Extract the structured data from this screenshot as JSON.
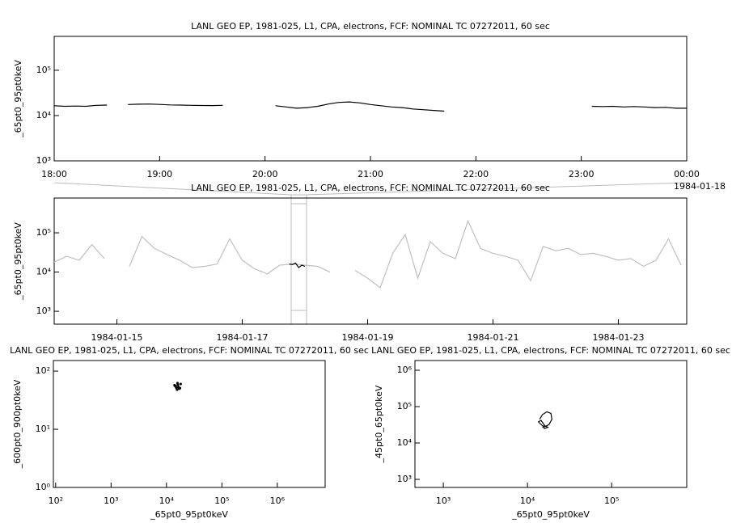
{
  "chart_data": [
    {
      "type": "line",
      "title": "LANL GEO EP, 1981-025, L1, CPA, electrons, FCF: NOMINAL TC 07272011, 60 sec",
      "ylabel": "_65pt0_95pt0keV",
      "date_label": "1984-01-18",
      "yscale": "log",
      "xlim": [
        18,
        24
      ],
      "ylim": [
        1000,
        560000
      ],
      "xticks": [
        {
          "value": 18,
          "label": "18:00"
        },
        {
          "value": 19,
          "label": "19:00"
        },
        {
          "value": 20,
          "label": "20:00"
        },
        {
          "value": 21,
          "label": "21:00"
        },
        {
          "value": 22,
          "label": "22:00"
        },
        {
          "value": 23,
          "label": "23:00"
        },
        {
          "value": 24,
          "label": "00:00"
        }
      ],
      "yticks": [
        {
          "value": 1000,
          "label": "10³"
        },
        {
          "value": 10000,
          "label": "10⁴"
        },
        {
          "value": 100000,
          "label": "10⁵"
        }
      ],
      "x": [
        18.0,
        18.1,
        18.2,
        18.3,
        18.4,
        18.5,
        18.6,
        18.7,
        18.8,
        18.9,
        19.0,
        19.1,
        19.2,
        19.3,
        19.4,
        19.5,
        19.6,
        19.7,
        19.8,
        19.9,
        20.0,
        20.1,
        20.2,
        20.3,
        20.4,
        20.5,
        20.6,
        20.7,
        20.8,
        20.9,
        21.0,
        21.1,
        21.2,
        21.3,
        21.4,
        21.5,
        21.6,
        21.7,
        21.8,
        21.9,
        22.0,
        22.1,
        22.2,
        22.3,
        22.4,
        22.5,
        22.6,
        22.7,
        22.8,
        22.9,
        23.0,
        23.1,
        23.2,
        23.3,
        23.4,
        23.5,
        23.6,
        23.7,
        23.8,
        23.9,
        24.0
      ],
      "series": [
        {
          "color": "#000000",
          "values": [
            16500,
            16000,
            16200,
            16000,
            16800,
            17000,
            null,
            17500,
            17800,
            18000,
            17600,
            17200,
            17000,
            16800,
            16700,
            16600,
            16800,
            null,
            null,
            null,
            null,
            16500,
            15500,
            14500,
            15000,
            16000,
            18000,
            19500,
            20000,
            19000,
            17500,
            16500,
            15500,
            15000,
            14000,
            13500,
            13000,
            12500,
            null,
            null,
            null,
            null,
            null,
            null,
            null,
            null,
            null,
            null,
            null,
            null,
            null,
            16000,
            15800,
            16000,
            15500,
            15800,
            15500,
            15000,
            15200,
            14500,
            14500
          ]
        }
      ]
    },
    {
      "type": "line",
      "title": "LANL GEO EP, 1981-025, L1, CPA, electrons, FCF: NOMINAL TC 07272011, 60 sec",
      "ylabel": "_65pt0_95pt0keV",
      "yscale": "log",
      "xlim": [
        14,
        24.09
      ],
      "ylim": [
        470,
        770000
      ],
      "xticks": [
        {
          "value": 15,
          "label": "1984-01-15"
        },
        {
          "value": 17,
          "label": "1984-01-17"
        },
        {
          "value": 19,
          "label": "1984-01-19"
        },
        {
          "value": 21,
          "label": "1984-01-21"
        },
        {
          "value": 23,
          "label": "1984-01-23"
        }
      ],
      "yticks": [
        {
          "value": 1000,
          "label": "10³"
        },
        {
          "value": 10000,
          "label": "10⁴"
        },
        {
          "value": 100000,
          "label": "10⁵"
        }
      ],
      "x": [
        14.0,
        14.2,
        14.4,
        14.6,
        14.8,
        15.0,
        15.2,
        15.4,
        15.6,
        15.8,
        16.0,
        16.2,
        16.4,
        16.6,
        16.8,
        17.0,
        17.2,
        17.4,
        17.6,
        17.8,
        18.0,
        18.2,
        18.4,
        18.6,
        18.8,
        19.0,
        19.2,
        19.4,
        19.6,
        19.8,
        20.0,
        20.2,
        20.4,
        20.6,
        20.8,
        21.0,
        21.2,
        21.4,
        21.6,
        21.8,
        22.0,
        22.2,
        22.4,
        22.6,
        22.8,
        23.0,
        23.2,
        23.4,
        23.6,
        23.8,
        24.0
      ],
      "series": [
        {
          "color": "#c0c0c0",
          "values": [
            18000,
            25000,
            20000,
            50000,
            22000,
            null,
            14000,
            80000,
            40000,
            28000,
            20000,
            13000,
            14000,
            16000,
            70000,
            20000,
            12000,
            9000,
            15000,
            16000,
            15000,
            14000,
            10000,
            null,
            11000,
            7000,
            4000,
            30000,
            90000,
            7000,
            60000,
            30000,
            22000,
            200000,
            40000,
            30000,
            25000,
            20000,
            6000,
            45000,
            35000,
            40000,
            28000,
            30000,
            25000,
            20000,
            22000,
            14000,
            20000,
            70000,
            15000
          ]
        },
        {
          "color": "#000000",
          "x": [
            17.75,
            17.8,
            17.85,
            17.9,
            17.95,
            18.0
          ],
          "values": [
            16000,
            15500,
            17000,
            13000,
            15000,
            14000
          ]
        }
      ]
    },
    {
      "type": "scatter",
      "title": "LANL GEO EP, 1981-025, L1, CPA, electrons, FCF: NOMINAL TC 07272011, 60 sec",
      "xlabel": "_65pt0_95pt0keV",
      "ylabel": "_600pt0_900pt0keV",
      "xscale": "log",
      "yscale": "log",
      "xlim": [
        91,
        7300000
      ],
      "ylim": [
        1,
        152
      ],
      "xticks": [
        {
          "value": 100,
          "label": "10²"
        },
        {
          "value": 1000,
          "label": "10³"
        },
        {
          "value": 10000,
          "label": "10⁴"
        },
        {
          "value": 100000,
          "label": "10⁵"
        },
        {
          "value": 1000000,
          "label": "10⁶"
        }
      ],
      "yticks": [
        {
          "value": 1,
          "label": "10⁰"
        },
        {
          "value": 10,
          "label": "10¹"
        },
        {
          "value": 100,
          "label": "10²"
        }
      ],
      "x": [
        15000,
        16000,
        17000,
        14500,
        15500,
        18000,
        16500,
        14000,
        17500,
        15800
      ],
      "series": [
        {
          "color": "#000000",
          "values": [
            52,
            58,
            50,
            55,
            48,
            60,
            53,
            57,
            51,
            62
          ]
        }
      ]
    },
    {
      "type": "line",
      "title": "LANL GEO EP, 1981-025, L1, CPA, electrons, FCF: NOMINAL TC 07272011, 60 sec",
      "xlabel": "_65pt0_95pt0keV",
      "ylabel": "_45pt0_65pt0keV",
      "xscale": "log",
      "yscale": "log",
      "xlim": [
        460,
        780000
      ],
      "ylim": [
        600,
        1850000
      ],
      "xticks": [
        {
          "value": 1000,
          "label": "10³"
        },
        {
          "value": 10000,
          "label": "10⁴"
        },
        {
          "value": 100000,
          "label": "10⁵"
        }
      ],
      "yticks": [
        {
          "value": 1000,
          "label": "10³"
        },
        {
          "value": 10000,
          "label": "10⁴"
        },
        {
          "value": 100000,
          "label": "10⁵"
        },
        {
          "value": 1000000,
          "label": "10⁶"
        }
      ],
      "x": [
        14000,
        15000,
        17000,
        19000,
        19500,
        18000,
        16000,
        15000,
        13500,
        14500,
        16000,
        17500,
        16000,
        15000
      ],
      "series": [
        {
          "color": "#000000",
          "values": [
            45000,
            60000,
            72000,
            65000,
            45000,
            32000,
            28000,
            30000,
            38000,
            42000,
            30000,
            27000,
            25000,
            28000
          ]
        }
      ]
    }
  ]
}
